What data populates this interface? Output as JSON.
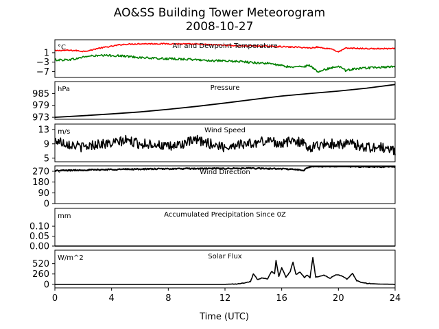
{
  "figure": {
    "title": "AO&SS Building Tower Meteorogram",
    "date": "2008-10-27",
    "xlabel": "Time (UTC)",
    "xlim": [
      0,
      24
    ],
    "xticks": [
      "0",
      "4",
      "8",
      "12",
      "16",
      "20",
      "24"
    ]
  },
  "chart_data": [
    {
      "type": "line",
      "title": "Air and Dewpoint Temperature",
      "unit_label": "°C",
      "ylim": [
        -9.5,
        6.5
      ],
      "yticks": [
        1,
        -3,
        -7
      ],
      "ytick_labels": [
        "1",
        "−3",
        "−7"
      ],
      "x": [
        0,
        0.5,
        1,
        1.5,
        2,
        2.5,
        3,
        3.5,
        4,
        4.5,
        5,
        6,
        7,
        8,
        9,
        10,
        11,
        12,
        13,
        14,
        15,
        16,
        16.5,
        17,
        17.5,
        18,
        18.5,
        19,
        19.5,
        20,
        20.5,
        21,
        22,
        23,
        24
      ],
      "series": [
        {
          "color": "#ff0000",
          "values": [
            1.8,
            2.0,
            2.0,
            1.9,
            1.6,
            2.0,
            2.8,
            3.3,
            3.7,
            4.3,
            4.6,
            4.8,
            4.8,
            4.8,
            4.7,
            4.6,
            4.4,
            4.2,
            3.9,
            3.9,
            3.7,
            3.6,
            3.4,
            3.4,
            3.2,
            3.0,
            3.4,
            2.9,
            2.7,
            1.3,
            2.9,
            2.9,
            2.7,
            2.7,
            2.7
          ]
        },
        {
          "color": "#008000",
          "values": [
            -2.0,
            -2.1,
            -1.9,
            -1.6,
            -0.8,
            -0.4,
            -0.3,
            -0.2,
            -0.2,
            -0.3,
            -0.5,
            -1.0,
            -1.4,
            -1.6,
            -1.7,
            -2.0,
            -2.3,
            -2.6,
            -2.7,
            -3.2,
            -3.5,
            -4.5,
            -5.0,
            -5.1,
            -4.8,
            -4.5,
            -7.0,
            -6.2,
            -5.5,
            -4.5,
            -6.5,
            -6.0,
            -5.5,
            -5.2,
            -5.0
          ]
        }
      ]
    },
    {
      "type": "line",
      "title": "Pressure",
      "unit_label": "hPa",
      "ylim": [
        972,
        991
      ],
      "yticks": [
        985,
        979,
        973
      ],
      "ytick_labels": [
        "985",
        "979",
        "973"
      ],
      "x": [
        0,
        2,
        4,
        6,
        8,
        10,
        12,
        14,
        16,
        18,
        20,
        22,
        24
      ],
      "series": [
        {
          "color": "#000000",
          "values": [
            973.0,
            973.8,
            974.7,
            975.7,
            977.0,
            978.5,
            980.2,
            982.0,
            983.7,
            985.0,
            986.2,
            987.7,
            989.5
          ]
        }
      ]
    },
    {
      "type": "line",
      "title": "Wind Speed",
      "unit_label": "m/s",
      "ylim": [
        4,
        14.5
      ],
      "yticks": [
        13,
        9,
        5
      ],
      "ytick_labels": [
        "13",
        "9",
        "5"
      ],
      "x": [
        0,
        1,
        2,
        3,
        4,
        5,
        6,
        7,
        8,
        9,
        10,
        11,
        12,
        13,
        14,
        15,
        16,
        17,
        18,
        19,
        20,
        21,
        22,
        23,
        24
      ],
      "series": [
        {
          "color": "#000000",
          "values": [
            10,
            9,
            8,
            9,
            9,
            10,
            9,
            9,
            8,
            9,
            10,
            9,
            8,
            9,
            9,
            10,
            9,
            10,
            8,
            9,
            9,
            9,
            8,
            8,
            7
          ]
        }
      ]
    },
    {
      "type": "line",
      "title": "Wind Direction",
      "unit_label": "°",
      "ylim": [
        0,
        315
      ],
      "yticks": [
        270,
        180,
        90,
        0
      ],
      "ytick_labels": [
        "270",
        "180",
        "90",
        "0"
      ],
      "x": [
        0,
        2,
        4,
        6,
        8,
        10,
        12,
        14,
        16,
        17,
        17.5,
        18,
        20,
        22,
        24
      ],
      "series": [
        {
          "color": "#000000",
          "values": [
            275,
            280,
            285,
            288,
            290,
            292,
            293,
            294,
            290,
            285,
            275,
            310,
            312,
            308,
            308
          ]
        }
      ]
    },
    {
      "type": "line",
      "title": "Accumulated Precipitation Since 0Z",
      "unit_label": "mm",
      "ylim": [
        0,
        0.19
      ],
      "yticks": [
        0.1,
        0.05,
        0.0
      ],
      "ytick_labels": [
        "0.10",
        "0.05",
        "0.00"
      ],
      "x": [
        0,
        24
      ],
      "series": [
        {
          "color": "#000000",
          "values": [
            0,
            0
          ]
        }
      ]
    },
    {
      "type": "line",
      "title": "Solar Flux",
      "unit_label": "W/m^2",
      "ylim": [
        -90,
        860
      ],
      "yticks": [
        520,
        260,
        0
      ],
      "ytick_labels": [
        "520",
        "260",
        "0"
      ],
      "x": [
        0,
        12,
        12.8,
        13.3,
        13.8,
        14.0,
        14.3,
        14.6,
        15.0,
        15.3,
        15.5,
        15.6,
        15.8,
        16.0,
        16.3,
        16.6,
        16.8,
        17.0,
        17.3,
        17.6,
        17.8,
        18.0,
        18.2,
        18.4,
        18.7,
        19.0,
        19.4,
        19.8,
        20.2,
        20.6,
        21.0,
        21.3,
        21.7,
        22.1,
        22.6,
        23.0,
        24
      ],
      "series": [
        {
          "color": "#000000",
          "values": [
            0,
            0,
            8,
            30,
            70,
            260,
            120,
            160,
            140,
            330,
            260,
            600,
            200,
            420,
            180,
            320,
            560,
            250,
            310,
            170,
            230,
            170,
            680,
            180,
            200,
            230,
            150,
            240,
            220,
            130,
            270,
            90,
            40,
            20,
            10,
            5,
            0
          ]
        }
      ]
    }
  ]
}
